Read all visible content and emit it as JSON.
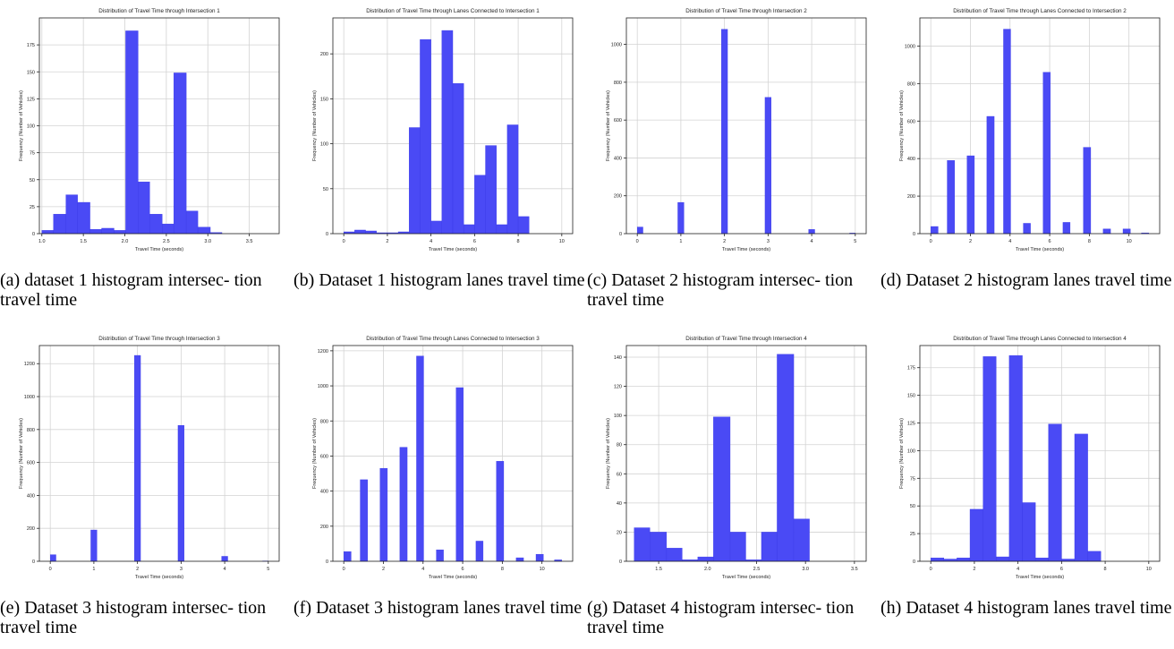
{
  "chart_data": [
    {
      "type": "bar",
      "title": "Distribution of Travel Time through Intersection 1",
      "xlabel": "Travel Time (seconds)",
      "ylabel": "Frequency (Number of Vehicles)",
      "xlim": [
        0.97,
        3.86
      ],
      "ylim": [
        0,
        200
      ],
      "xticks": [
        1.0,
        1.5,
        2.0,
        2.5,
        3.0,
        3.5
      ],
      "xtick_labels": [
        "1.0",
        "1.5",
        "2.0",
        "2.5",
        "3.0",
        "3.5"
      ],
      "yticks": [
        0,
        25,
        50,
        75,
        100,
        125,
        150,
        175
      ],
      "grid": true,
      "bins": [
        {
          "x0": 1.0,
          "x1": 1.14,
          "y": 3
        },
        {
          "x0": 1.14,
          "x1": 1.29,
          "y": 18
        },
        {
          "x0": 1.29,
          "x1": 1.43,
          "y": 36
        },
        {
          "x0": 1.43,
          "x1": 1.58,
          "y": 29
        },
        {
          "x0": 1.58,
          "x1": 1.72,
          "y": 4
        },
        {
          "x0": 1.72,
          "x1": 1.87,
          "y": 5
        },
        {
          "x0": 1.87,
          "x1": 2.01,
          "y": 3
        },
        {
          "x0": 2.01,
          "x1": 2.16,
          "y": 188
        },
        {
          "x0": 2.16,
          "x1": 2.3,
          "y": 48
        },
        {
          "x0": 2.3,
          "x1": 2.45,
          "y": 18
        },
        {
          "x0": 2.45,
          "x1": 2.59,
          "y": 9
        },
        {
          "x0": 2.59,
          "x1": 2.74,
          "y": 149
        },
        {
          "x0": 2.74,
          "x1": 2.88,
          "y": 21
        },
        {
          "x0": 2.88,
          "x1": 3.03,
          "y": 6
        },
        {
          "x0": 3.03,
          "x1": 3.17,
          "y": 1
        }
      ],
      "caption": "(a) dataset 1 histogram intersec- tion travel time"
    },
    {
      "type": "bar",
      "title": "Distribution of Travel Time through Lanes Connected to Intersection 1",
      "xlabel": "Travel Time (seconds)",
      "ylabel": "Frequency (Number of Vehicles)",
      "xlim": [
        -0.5,
        10.5
      ],
      "ylim": [
        0,
        240
      ],
      "xticks": [
        0,
        2,
        4,
        6,
        8,
        10
      ],
      "xtick_labels": [
        "0",
        "2",
        "4",
        "6",
        "8",
        "10"
      ],
      "yticks": [
        0,
        50,
        100,
        150,
        200
      ],
      "grid": true,
      "bins": [
        {
          "x0": 0.0,
          "x1": 0.5,
          "y": 2
        },
        {
          "x0": 0.5,
          "x1": 1.0,
          "y": 4
        },
        {
          "x0": 1.0,
          "x1": 1.5,
          "y": 3
        },
        {
          "x0": 1.5,
          "x1": 2.0,
          "y": 1
        },
        {
          "x0": 2.0,
          "x1": 2.5,
          "y": 1
        },
        {
          "x0": 2.5,
          "x1": 3.0,
          "y": 2
        },
        {
          "x0": 3.0,
          "x1": 3.5,
          "y": 118
        },
        {
          "x0": 3.5,
          "x1": 4.0,
          "y": 216
        },
        {
          "x0": 4.0,
          "x1": 4.5,
          "y": 14
        },
        {
          "x0": 4.5,
          "x1": 5.0,
          "y": 226
        },
        {
          "x0": 5.0,
          "x1": 5.5,
          "y": 167
        },
        {
          "x0": 5.5,
          "x1": 6.0,
          "y": 10
        },
        {
          "x0": 6.0,
          "x1": 6.5,
          "y": 65
        },
        {
          "x0": 6.5,
          "x1": 7.0,
          "y": 98
        },
        {
          "x0": 7.0,
          "x1": 7.5,
          "y": 10
        },
        {
          "x0": 7.5,
          "x1": 8.0,
          "y": 121
        },
        {
          "x0": 8.0,
          "x1": 8.5,
          "y": 19
        }
      ],
      "caption": "(b) Dataset 1 histogram lanes travel time"
    },
    {
      "type": "bar",
      "title": "Distribution of Travel Time through Intersection 2",
      "xlabel": "Travel Time (seconds)",
      "ylabel": "Frequency (Number of Vehicles)",
      "xlim": [
        -0.25,
        5.25
      ],
      "ylim": [
        0,
        1140
      ],
      "xticks": [
        0,
        1,
        2,
        3,
        4,
        5
      ],
      "xtick_labels": [
        "0",
        "1",
        "2",
        "3",
        "4",
        "5"
      ],
      "yticks": [
        0,
        200,
        400,
        600,
        800,
        1000
      ],
      "grid": true,
      "bins": [
        {
          "x0": 0.0,
          "x1": 0.13,
          "y": 35
        },
        {
          "x0": 0.93,
          "x1": 1.07,
          "y": 165
        },
        {
          "x0": 1.93,
          "x1": 2.07,
          "y": 1080
        },
        {
          "x0": 2.93,
          "x1": 3.07,
          "y": 720
        },
        {
          "x0": 3.93,
          "x1": 4.07,
          "y": 22
        },
        {
          "x0": 4.87,
          "x1": 5.0,
          "y": 3
        }
      ],
      "caption": "(c) Dataset 2 histogram intersec- tion travel time"
    },
    {
      "type": "bar",
      "title": "Distribution of Travel Time through Lanes Connected to Intersection 2",
      "xlabel": "Travel Time (seconds)",
      "ylabel": "Frequency (Number of Vehicles)",
      "xlim": [
        -0.55,
        11.55
      ],
      "ylim": [
        0,
        1150
      ],
      "xticks": [
        0,
        2,
        4,
        6,
        8,
        10
      ],
      "xtick_labels": [
        "0",
        "2",
        "4",
        "6",
        "8",
        "10"
      ],
      "yticks": [
        0,
        200,
        400,
        600,
        800,
        1000
      ],
      "grid": true,
      "bins": [
        {
          "x0": 0.0,
          "x1": 0.37,
          "y": 38
        },
        {
          "x0": 0.83,
          "x1": 1.2,
          "y": 390
        },
        {
          "x0": 1.83,
          "x1": 2.2,
          "y": 415
        },
        {
          "x0": 2.83,
          "x1": 3.2,
          "y": 625
        },
        {
          "x0": 3.67,
          "x1": 4.03,
          "y": 1090
        },
        {
          "x0": 4.67,
          "x1": 5.03,
          "y": 55
        },
        {
          "x0": 5.67,
          "x1": 6.03,
          "y": 860
        },
        {
          "x0": 6.67,
          "x1": 7.03,
          "y": 60
        },
        {
          "x0": 7.7,
          "x1": 8.07,
          "y": 460
        },
        {
          "x0": 8.7,
          "x1": 9.07,
          "y": 25
        },
        {
          "x0": 9.7,
          "x1": 10.07,
          "y": 25
        },
        {
          "x0": 10.63,
          "x1": 11.0,
          "y": 4
        }
      ],
      "caption": "(d) Dataset 2 histogram lanes travel time"
    },
    {
      "type": "bar",
      "title": "Distribution of Travel Time through Intersection 3",
      "xlabel": "Travel Time (seconds)",
      "ylabel": "Frequency (Number of Vehicles)",
      "xlim": [
        -0.25,
        5.25
      ],
      "ylim": [
        0,
        1310
      ],
      "xticks": [
        0,
        1,
        2,
        3,
        4,
        5
      ],
      "xtick_labels": [
        "0",
        "1",
        "2",
        "3",
        "4",
        "5"
      ],
      "yticks": [
        0,
        200,
        400,
        600,
        800,
        1000,
        1200
      ],
      "grid": true,
      "bins": [
        {
          "x0": 0.0,
          "x1": 0.13,
          "y": 40
        },
        {
          "x0": 0.93,
          "x1": 1.07,
          "y": 190
        },
        {
          "x0": 1.93,
          "x1": 2.07,
          "y": 1250
        },
        {
          "x0": 2.93,
          "x1": 3.07,
          "y": 825
        },
        {
          "x0": 3.93,
          "x1": 4.07,
          "y": 30
        },
        {
          "x0": 4.87,
          "x1": 5.0,
          "y": 2
        }
      ],
      "caption": "(e) Dataset 3 histogram intersec- tion travel time"
    },
    {
      "type": "bar",
      "title": "Distribution of Travel Time through Lanes Connected to Intersection 3",
      "xlabel": "Travel Time (seconds)",
      "ylabel": "Frequency (Number of Vehicles)",
      "xlim": [
        -0.55,
        11.55
      ],
      "ylim": [
        0,
        1230
      ],
      "xticks": [
        0,
        2,
        4,
        6,
        8,
        10
      ],
      "xtick_labels": [
        "0",
        "2",
        "4",
        "6",
        "8",
        "10"
      ],
      "yticks": [
        0,
        200,
        400,
        600,
        800,
        1000,
        1200
      ],
      "grid": true,
      "bins": [
        {
          "x0": 0.0,
          "x1": 0.37,
          "y": 55
        },
        {
          "x0": 0.83,
          "x1": 1.2,
          "y": 465
        },
        {
          "x0": 1.83,
          "x1": 2.2,
          "y": 530
        },
        {
          "x0": 2.83,
          "x1": 3.2,
          "y": 650
        },
        {
          "x0": 3.67,
          "x1": 4.03,
          "y": 1170
        },
        {
          "x0": 4.67,
          "x1": 5.03,
          "y": 65
        },
        {
          "x0": 5.67,
          "x1": 6.03,
          "y": 990
        },
        {
          "x0": 6.67,
          "x1": 7.03,
          "y": 115
        },
        {
          "x0": 7.7,
          "x1": 8.07,
          "y": 570
        },
        {
          "x0": 8.7,
          "x1": 9.07,
          "y": 20
        },
        {
          "x0": 9.7,
          "x1": 10.07,
          "y": 40
        },
        {
          "x0": 10.63,
          "x1": 11.0,
          "y": 8
        }
      ],
      "caption": "(f) Dataset 3 histogram lanes travel time"
    },
    {
      "type": "bar",
      "title": "Distribution of Travel Time through Intersection 4",
      "xlabel": "Travel Time (seconds)",
      "ylabel": "Frequency (Number of Vehicles)",
      "xlim": [
        1.17,
        3.62
      ],
      "ylim": [
        0,
        148
      ],
      "xticks": [
        1.5,
        2.0,
        2.5,
        3.0,
        3.5
      ],
      "xtick_labels": [
        "1.5",
        "2.0",
        "2.5",
        "3.0",
        "3.5"
      ],
      "yticks": [
        0,
        20,
        40,
        60,
        80,
        100,
        120,
        140
      ],
      "grid": true,
      "bins": [
        {
          "x0": 1.25,
          "x1": 1.41,
          "y": 23
        },
        {
          "x0": 1.41,
          "x1": 1.58,
          "y": 20
        },
        {
          "x0": 1.58,
          "x1": 1.74,
          "y": 9
        },
        {
          "x0": 1.74,
          "x1": 1.9,
          "y": 1
        },
        {
          "x0": 1.9,
          "x1": 2.06,
          "y": 3
        },
        {
          "x0": 2.06,
          "x1": 2.23,
          "y": 99
        },
        {
          "x0": 2.23,
          "x1": 2.39,
          "y": 20
        },
        {
          "x0": 2.39,
          "x1": 2.55,
          "y": 1
        },
        {
          "x0": 2.55,
          "x1": 2.71,
          "y": 20
        },
        {
          "x0": 2.71,
          "x1": 2.88,
          "y": 142
        },
        {
          "x0": 2.88,
          "x1": 3.04,
          "y": 29
        }
      ],
      "caption": "(g) Dataset 4 histogram intersec- tion travel time"
    },
    {
      "type": "bar",
      "title": "Distribution of Travel Time through Lanes Connected to Intersection 4",
      "xlabel": "Travel Time (seconds)",
      "ylabel": "Frequency (Number of Vehicles)",
      "xlim": [
        -0.5,
        10.5
      ],
      "ylim": [
        0,
        195
      ],
      "xticks": [
        0,
        2,
        4,
        6,
        8,
        10
      ],
      "xtick_labels": [
        "0",
        "2",
        "4",
        "6",
        "8",
        "10"
      ],
      "yticks": [
        0,
        25,
        50,
        75,
        100,
        125,
        150,
        175
      ],
      "grid": true,
      "bins": [
        {
          "x0": 0.0,
          "x1": 0.6,
          "y": 3
        },
        {
          "x0": 0.6,
          "x1": 1.2,
          "y": 2
        },
        {
          "x0": 1.2,
          "x1": 1.8,
          "y": 3
        },
        {
          "x0": 1.8,
          "x1": 2.4,
          "y": 47
        },
        {
          "x0": 2.4,
          "x1": 3.0,
          "y": 185
        },
        {
          "x0": 3.0,
          "x1": 3.6,
          "y": 4
        },
        {
          "x0": 3.6,
          "x1": 4.2,
          "y": 186
        },
        {
          "x0": 4.2,
          "x1": 4.8,
          "y": 53
        },
        {
          "x0": 4.8,
          "x1": 5.4,
          "y": 3
        },
        {
          "x0": 5.4,
          "x1": 6.0,
          "y": 124
        },
        {
          "x0": 6.0,
          "x1": 6.6,
          "y": 2
        },
        {
          "x0": 6.6,
          "x1": 7.2,
          "y": 115
        },
        {
          "x0": 7.2,
          "x1": 7.8,
          "y": 9
        }
      ],
      "caption": "(h) Dataset 4 histogram lanes travel time"
    }
  ],
  "colors": {
    "bar": "#4a4af5",
    "bar_edge": "#3a3ae8",
    "grid": "#d3d3d3",
    "axis": "#222222"
  }
}
